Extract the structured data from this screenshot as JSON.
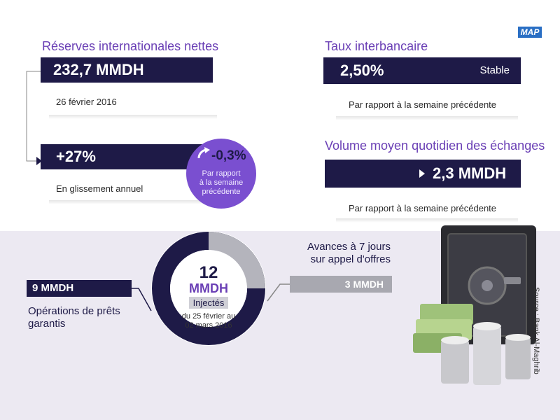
{
  "logo": {
    "text": "MAP"
  },
  "reserves": {
    "title": "Réserves internationales nettes",
    "value": "232,7 MMDH",
    "date": "26 février 2016",
    "change": "+27%",
    "change_label": "En glissement annuel",
    "weekly_change": "-0,3%",
    "weekly_label_1": "Par rapport",
    "weekly_label_2": "à la semaine",
    "weekly_label_3": "précédente"
  },
  "interbank": {
    "title": "Taux interbancaire",
    "value": "2,50%",
    "status": "Stable",
    "note": "Par rapport à la semaine précédente"
  },
  "volume": {
    "title": "Volume moyen quotidien des échanges",
    "value": "2,3 MMDH",
    "note": "Par rapport à la semaine précédente"
  },
  "injection": {
    "total_number": "12",
    "total_unit": "MMDH",
    "label": "Injectés",
    "period_1": "du 25 février au",
    "period_2": "02 mars 2016",
    "loans_value": "9 MMDH",
    "loans_label_1": "Opérations de prêts",
    "loans_label_2": "garantis",
    "advances_label_1": "Avances à 7 jours",
    "advances_label_2": "sur appel d'offres",
    "advances_value": "3 MMDH",
    "ring_fractions": {
      "loans": 0.75,
      "advances": 0.25
    }
  },
  "source": "Source : Bank Al-Maghrib",
  "colors": {
    "navy": "#1e1a47",
    "purple": "#6a3fb5",
    "circle": "#7a4fd0",
    "grey": "#a8a8b0"
  }
}
